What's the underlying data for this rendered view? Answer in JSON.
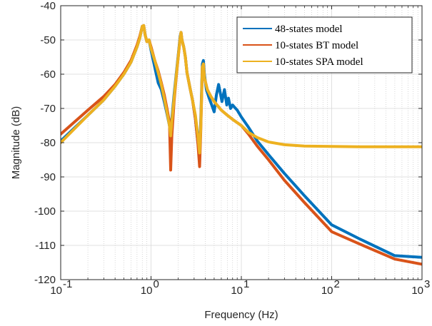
{
  "chart_data": {
    "type": "line",
    "xlabel": "Frequency  (Hz)",
    "ylabel": "Magnitude (dB)",
    "xscale": "log",
    "xlim": [
      0.1,
      1000
    ],
    "ylim": [
      -120,
      -40
    ],
    "grid": true,
    "legend_position": "top-right",
    "x_ticks": [
      {
        "value": 0.1,
        "base": "10",
        "exp": "-1"
      },
      {
        "value": 1,
        "base": "10",
        "exp": "0"
      },
      {
        "value": 10,
        "base": "10",
        "exp": "1"
      },
      {
        "value": 100,
        "base": "10",
        "exp": "2"
      },
      {
        "value": 1000,
        "base": "10",
        "exp": "3"
      }
    ],
    "y_ticks": [
      -40,
      -50,
      -60,
      -70,
      -80,
      -90,
      -100,
      -110,
      -120
    ],
    "series": [
      {
        "name": "48-states model",
        "color": "#0072BD",
        "line_width": 4,
        "x": [
          0.1,
          0.2,
          0.3,
          0.4,
          0.5,
          0.6,
          0.7,
          0.75,
          0.8,
          0.83,
          0.86,
          0.9,
          0.95,
          1.0,
          1.05,
          1.1,
          1.2,
          1.3,
          1.4,
          1.5,
          1.6,
          1.63,
          1.7,
          1.8,
          1.9,
          2.0,
          2.1,
          2.15,
          2.2,
          2.3,
          2.4,
          2.5,
          2.7,
          2.9,
          3.1,
          3.3,
          3.45,
          3.55,
          3.7,
          3.8,
          3.9,
          4.1,
          4.4,
          4.7,
          5.0,
          5.3,
          5.6,
          5.8,
          6.1,
          6.5,
          6.9,
          7.2,
          7.6,
          8.0,
          8.5,
          9.0,
          10,
          12,
          15,
          20,
          30,
          50,
          100,
          200,
          500,
          1000
        ],
        "y": [
          -79.5,
          -72,
          -67.5,
          -63.5,
          -60,
          -56.5,
          -52,
          -49.5,
          -46,
          -45.8,
          -48.5,
          -50.5,
          -50,
          -53,
          -55.5,
          -58,
          -62.5,
          -64.5,
          -68,
          -71.5,
          -75,
          -77,
          -73,
          -66,
          -60,
          -54.5,
          -49,
          -47.8,
          -50,
          -52,
          -55,
          -59.5,
          -64,
          -68,
          -73,
          -80,
          -82,
          -74,
          -57,
          -56,
          -60,
          -64.5,
          -67,
          -69,
          -71,
          -66,
          -63,
          -65,
          -68,
          -64.5,
          -69,
          -67,
          -70,
          -69,
          -69.8,
          -70.5,
          -72.5,
          -75.5,
          -79.5,
          -83.5,
          -89,
          -95.5,
          -104,
          -108,
          -113,
          -113.5
        ]
      },
      {
        "name": "10-states BT model",
        "color": "#D95319",
        "line_width": 4,
        "x": [
          0.1,
          0.2,
          0.3,
          0.4,
          0.5,
          0.6,
          0.7,
          0.75,
          0.8,
          0.83,
          0.86,
          0.9,
          0.95,
          1.0,
          1.1,
          1.2,
          1.3,
          1.4,
          1.5,
          1.6,
          1.65,
          1.7,
          1.8,
          1.9,
          2.0,
          2.1,
          2.15,
          2.2,
          2.3,
          2.4,
          2.5,
          2.7,
          2.9,
          3.1,
          3.3,
          3.45,
          3.55,
          3.7,
          3.8,
          3.9,
          4.2,
          4.6,
          5,
          6,
          7,
          8,
          10,
          12,
          15,
          20,
          30,
          50,
          100,
          200,
          500,
          1000
        ],
        "y": [
          -77.5,
          -70.5,
          -66.5,
          -63,
          -59.5,
          -56,
          -51.5,
          -49,
          -46,
          -45.8,
          -48.5,
          -50.5,
          -50,
          -52,
          -56,
          -59,
          -62.5,
          -66,
          -70,
          -74,
          -88,
          -78,
          -68,
          -61,
          -55,
          -49.5,
          -47.8,
          -50,
          -52,
          -55,
          -59.5,
          -64,
          -68,
          -73,
          -80,
          -87,
          -77,
          -58,
          -57,
          -61,
          -64.5,
          -66.5,
          -68,
          -70.5,
          -72,
          -73.2,
          -75,
          -77.5,
          -81,
          -85,
          -91,
          -97.5,
          -106,
          -109.5,
          -114,
          -115.5
        ]
      },
      {
        "name": "10-states SPA model",
        "color": "#EDB120",
        "line_width": 4,
        "x": [
          0.1,
          0.2,
          0.3,
          0.4,
          0.5,
          0.6,
          0.7,
          0.75,
          0.8,
          0.83,
          0.86,
          0.9,
          0.95,
          1.0,
          1.1,
          1.2,
          1.3,
          1.4,
          1.5,
          1.6,
          1.65,
          1.7,
          1.8,
          1.9,
          2.0,
          2.1,
          2.15,
          2.2,
          2.3,
          2.4,
          2.5,
          2.7,
          2.9,
          3.1,
          3.3,
          3.45,
          3.55,
          3.7,
          3.8,
          3.9,
          4.2,
          4.6,
          5,
          6,
          7,
          8,
          10,
          12,
          15,
          20,
          30,
          50,
          100,
          200,
          500,
          1000
        ],
        "y": [
          -80,
          -72,
          -67.5,
          -63.5,
          -60,
          -56.5,
          -52,
          -49.5,
          -46,
          -45.8,
          -48.5,
          -50.5,
          -50,
          -52.5,
          -56,
          -59.5,
          -63,
          -67,
          -71,
          -75,
          -78,
          -74,
          -67,
          -60.5,
          -55,
          -49.5,
          -47.8,
          -50,
          -52,
          -55,
          -59.5,
          -64,
          -68,
          -72,
          -78,
          -83,
          -76,
          -58,
          -57,
          -61,
          -64.5,
          -66.5,
          -68,
          -70.5,
          -72,
          -73.2,
          -75,
          -77,
          -78.5,
          -79.8,
          -80.6,
          -81,
          -81.1,
          -81.2,
          -81.2,
          -81.2
        ]
      }
    ]
  }
}
